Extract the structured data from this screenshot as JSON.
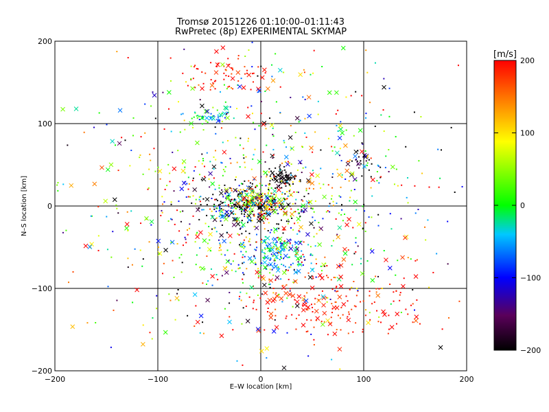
{
  "chart_data": {
    "type": "scatter",
    "title": "Tromsø 20151226 01:10:00–01:11:43",
    "subtitle": "RwPretec (8p) EXPERIMENTAL SKYMAP",
    "xlabel": "E–W location [km]",
    "ylabel": "N–S location [km]",
    "xlim": [
      -200,
      200
    ],
    "ylim": [
      -200,
      200
    ],
    "x_ticks": [
      -200,
      -100,
      0,
      100,
      200
    ],
    "y_ticks": [
      -200,
      -100,
      0,
      100,
      200
    ],
    "grid": true,
    "colorbar": {
      "label": "[m/s]",
      "range": [
        -200,
        200
      ],
      "ticks": [
        200,
        100,
        0,
        -100,
        -200
      ],
      "colormap": [
        "#000000",
        "#5a005a",
        "#0000ff",
        "#00c8ff",
        "#00ff00",
        "#ffff00",
        "#ff8000",
        "#ff0000"
      ]
    },
    "clusters": [
      {
        "cx": -10,
        "cy": 0,
        "sx": 25,
        "sy": 12,
        "n": 260,
        "v": -200,
        "vs": 150
      },
      {
        "cx": 0,
        "cy": 2,
        "sx": 18,
        "sy": 10,
        "n": 120,
        "v": 120,
        "vs": 90
      },
      {
        "cx": 22,
        "cy": 35,
        "sx": 7,
        "sy": 6,
        "n": 70,
        "v": -200,
        "vs": 8
      },
      {
        "cx": 15,
        "cy": -55,
        "sx": 18,
        "sy": 14,
        "n": 170,
        "v": -40,
        "vs": 50
      },
      {
        "cx": 65,
        "cy": -120,
        "sx": 45,
        "sy": 22,
        "n": 180,
        "v": 190,
        "vs": 20
      },
      {
        "cx": -30,
        "cy": 160,
        "sx": 18,
        "sy": 12,
        "n": 60,
        "v": 195,
        "vs": 15
      },
      {
        "cx": -45,
        "cy": 110,
        "sx": 12,
        "sy": 6,
        "n": 45,
        "v": -20,
        "vs": 40
      },
      {
        "cx": 100,
        "cy": 50,
        "sx": 12,
        "sy": 10,
        "n": 40,
        "v": -150,
        "vs": 80
      },
      {
        "cx": 0,
        "cy": 0,
        "sx": 80,
        "sy": 80,
        "n": 900,
        "v": 20,
        "vs": 140
      },
      {
        "cx": 0,
        "cy": 0,
        "sx": 150,
        "sy": 100,
        "n": 140,
        "v": 20,
        "vs": 150
      }
    ]
  }
}
